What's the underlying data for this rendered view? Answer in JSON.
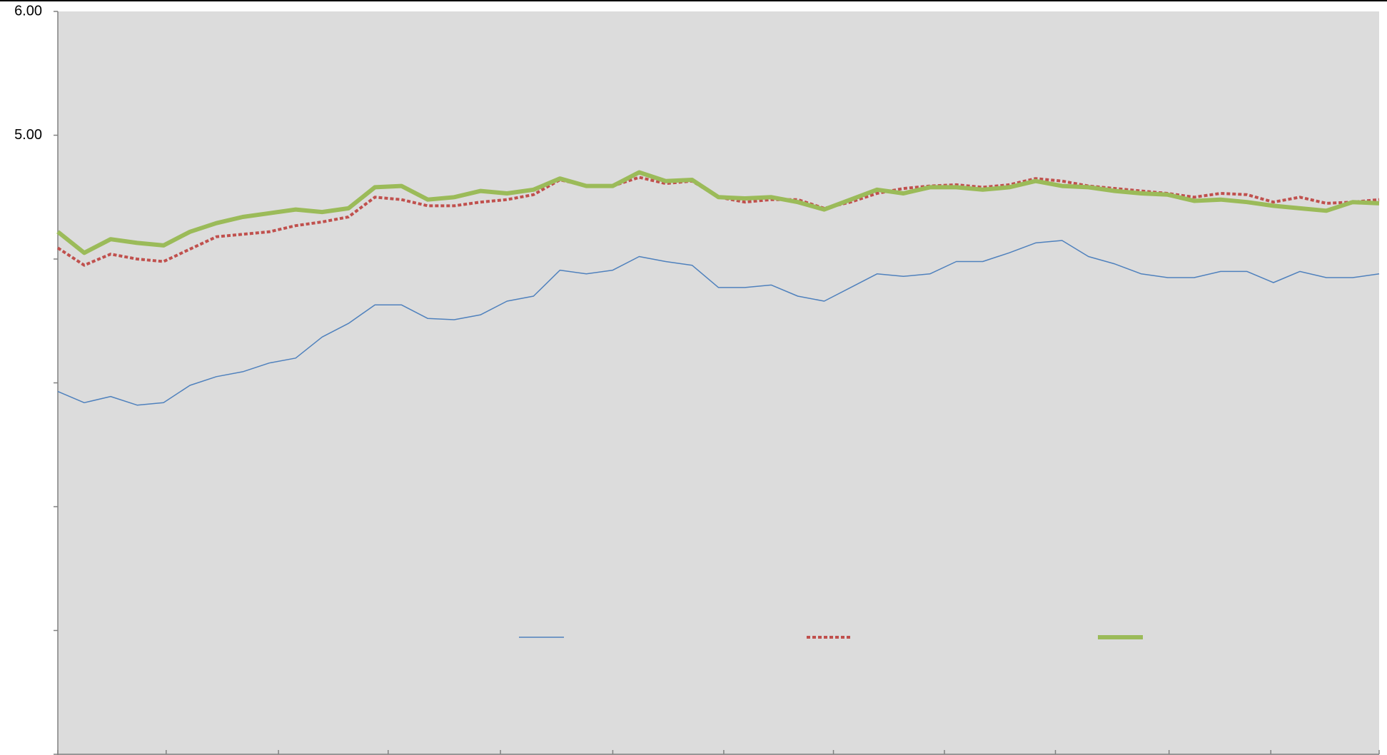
{
  "chart_data": {
    "type": "line",
    "x": [
      0,
      2,
      4,
      6,
      8,
      10,
      12,
      14,
      16,
      18,
      20,
      22,
      24,
      26,
      28,
      30,
      32,
      34,
      36,
      38,
      40,
      42,
      44,
      46,
      48,
      50,
      52,
      54,
      56,
      58,
      60,
      62,
      64,
      66,
      68,
      70,
      72,
      74,
      76,
      78,
      80,
      82,
      84,
      86,
      88,
      90,
      92,
      94,
      96,
      98,
      100
    ],
    "xlim": [
      0,
      100
    ],
    "xticks": [
      {
        "value": 0,
        "label": null
      },
      {
        "value": 8.2,
        "label": null
      },
      {
        "value": 16.7,
        "label": null
      },
      {
        "value": 25.0,
        "label": null
      },
      {
        "value": 33.5,
        "label": null
      },
      {
        "value": 42.0,
        "label": null
      },
      {
        "value": 50.4,
        "label": null
      },
      {
        "value": 58.7,
        "label": null
      },
      {
        "value": 67.1,
        "label": null
      },
      {
        "value": 75.5,
        "label": null
      },
      {
        "value": 84.1,
        "label": null
      },
      {
        "value": 91.8,
        "label": null
      },
      {
        "value": 100,
        "label": null
      }
    ],
    "ylim": [
      0,
      6
    ],
    "yticks": [
      {
        "value": 0,
        "label": null
      },
      {
        "value": 1,
        "label": null
      },
      {
        "value": 2,
        "label": null
      },
      {
        "value": 3,
        "label": null
      },
      {
        "value": 4,
        "label": null
      },
      {
        "value": 5,
        "label": "5.00"
      },
      {
        "value": 6,
        "label": "6.00"
      }
    ],
    "series": [
      {
        "color": "#4f81bd",
        "style": "thin",
        "values": [
          2.93,
          2.84,
          2.89,
          2.82,
          2.84,
          2.98,
          3.05,
          3.09,
          3.16,
          3.2,
          3.37,
          3.48,
          3.63,
          3.63,
          3.52,
          3.51,
          3.55,
          3.66,
          3.7,
          3.91,
          3.88,
          3.91,
          4.02,
          3.98,
          3.95,
          3.77,
          3.77,
          3.79,
          3.7,
          3.66,
          3.77,
          3.88,
          3.86,
          3.88,
          3.98,
          3.98,
          4.05,
          4.13,
          4.15,
          4.02,
          3.96,
          3.88,
          3.85,
          3.85,
          3.9,
          3.9,
          3.81,
          3.9,
          3.85,
          3.85,
          3.88
        ]
      },
      {
        "color": "#c0504d",
        "style": "dotted",
        "values": [
          4.09,
          3.95,
          4.04,
          4.0,
          3.98,
          4.08,
          4.18,
          4.2,
          4.22,
          4.27,
          4.3,
          4.34,
          4.5,
          4.48,
          4.43,
          4.43,
          4.46,
          4.48,
          4.52,
          4.64,
          4.59,
          4.59,
          4.66,
          4.61,
          4.63,
          4.5,
          4.46,
          4.48,
          4.48,
          4.41,
          4.46,
          4.53,
          4.57,
          4.59,
          4.6,
          4.58,
          4.6,
          4.65,
          4.63,
          4.59,
          4.57,
          4.55,
          4.53,
          4.5,
          4.53,
          4.52,
          4.46,
          4.5,
          4.45,
          4.46,
          4.48
        ]
      },
      {
        "color": "#9bbb59",
        "style": "thick",
        "values": [
          4.22,
          4.05,
          4.16,
          4.13,
          4.11,
          4.22,
          4.29,
          4.34,
          4.37,
          4.4,
          4.38,
          4.41,
          4.58,
          4.59,
          4.48,
          4.5,
          4.55,
          4.53,
          4.56,
          4.65,
          4.59,
          4.59,
          4.7,
          4.63,
          4.64,
          4.5,
          4.49,
          4.5,
          4.46,
          4.4,
          4.48,
          4.56,
          4.53,
          4.58,
          4.58,
          4.56,
          4.58,
          4.63,
          4.59,
          4.58,
          4.55,
          4.53,
          4.52,
          4.47,
          4.48,
          4.46,
          4.43,
          4.41,
          4.39,
          4.46,
          4.45
        ]
      }
    ]
  }
}
